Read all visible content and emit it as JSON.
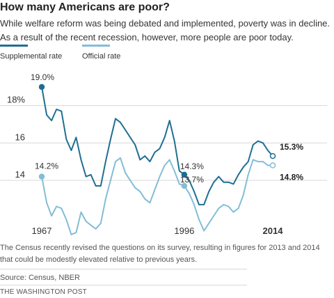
{
  "header": {
    "title": "How many Americans are poor?",
    "subtitle": "While welfare reform was being debated and implemented, poverty was in decline. As a result of the recent recession, however, more people are poor today."
  },
  "colors": {
    "supplemental": "#1f6e92",
    "official": "#83bdd6",
    "grid": "#d9d9d9",
    "axis_text": "#333333"
  },
  "chart_data": {
    "type": "line",
    "title": "",
    "xlabel": "",
    "ylabel": "",
    "x_tick_labels": [
      "1967",
      "1996",
      "2014"
    ],
    "x_tick_values": [
      1967,
      1996,
      2014
    ],
    "y_tick_labels": [
      "18%",
      "16",
      "14"
    ],
    "y_tick_values": [
      18,
      16,
      14
    ],
    "ylim": [
      11.8,
      20.0
    ],
    "xlim": [
      1967,
      2014
    ],
    "grid": true,
    "legend_placement": "top-left",
    "series": [
      {
        "name": "Supplemental rate",
        "color": "#1f6e92",
        "points": [
          [
            1967,
            19.0
          ],
          [
            1968,
            17.5
          ],
          [
            1969,
            17.2
          ],
          [
            1970,
            17.8
          ],
          [
            1971,
            17.7
          ],
          [
            1972,
            16.2
          ],
          [
            1973,
            15.6
          ],
          [
            1974,
            16.3
          ],
          [
            1975,
            15.1
          ],
          [
            1976,
            14.2
          ],
          [
            1977,
            14.3
          ],
          [
            1978,
            13.7
          ],
          [
            1979,
            13.7
          ],
          [
            1980,
            15.0
          ],
          [
            1981,
            16.2
          ],
          [
            1982,
            17.3
          ],
          [
            1983,
            17.1
          ],
          [
            1984,
            16.7
          ],
          [
            1985,
            16.3
          ],
          [
            1986,
            15.9
          ],
          [
            1987,
            15.1
          ],
          [
            1988,
            15.3
          ],
          [
            1989,
            15.0
          ],
          [
            1990,
            15.5
          ],
          [
            1991,
            15.7
          ],
          [
            1992,
            16.3
          ],
          [
            1993,
            17.2
          ],
          [
            1994,
            16.1
          ],
          [
            1995,
            14.5
          ],
          [
            1996,
            14.3
          ],
          [
            1997,
            14.0
          ],
          [
            1998,
            13.4
          ],
          [
            1999,
            12.7
          ],
          [
            2000,
            12.7
          ],
          [
            2001,
            13.4
          ],
          [
            2002,
            13.9
          ],
          [
            2003,
            14.2
          ],
          [
            2004,
            13.9
          ],
          [
            2005,
            13.9
          ],
          [
            2006,
            13.8
          ],
          [
            2007,
            14.3
          ],
          [
            2008,
            14.7
          ],
          [
            2009,
            15.0
          ],
          [
            2010,
            15.9
          ],
          [
            2011,
            16.1
          ],
          [
            2012,
            16.0
          ],
          [
            2013,
            15.6
          ],
          [
            2014,
            15.3
          ]
        ]
      },
      {
        "name": "Official rate",
        "color": "#83bdd6",
        "points": [
          [
            1967,
            14.2
          ],
          [
            1968,
            12.8
          ],
          [
            1969,
            12.1
          ],
          [
            1970,
            12.6
          ],
          [
            1971,
            12.5
          ],
          [
            1972,
            11.9
          ],
          [
            1973,
            11.1
          ],
          [
            1974,
            11.2
          ],
          [
            1975,
            12.3
          ],
          [
            1976,
            11.8
          ],
          [
            1977,
            11.6
          ],
          [
            1978,
            11.4
          ],
          [
            1979,
            11.7
          ],
          [
            1980,
            13.0
          ],
          [
            1981,
            14.0
          ],
          [
            1982,
            15.0
          ],
          [
            1983,
            15.2
          ],
          [
            1984,
            14.4
          ],
          [
            1985,
            14.0
          ],
          [
            1986,
            13.6
          ],
          [
            1987,
            13.4
          ],
          [
            1988,
            13.0
          ],
          [
            1989,
            12.8
          ],
          [
            1990,
            13.5
          ],
          [
            1991,
            14.2
          ],
          [
            1992,
            14.8
          ],
          [
            1993,
            15.1
          ],
          [
            1994,
            14.5
          ],
          [
            1995,
            13.8
          ],
          [
            1996,
            13.7
          ],
          [
            1997,
            13.3
          ],
          [
            1998,
            12.7
          ],
          [
            1999,
            11.9
          ],
          [
            2000,
            11.3
          ],
          [
            2001,
            11.7
          ],
          [
            2002,
            12.1
          ],
          [
            2003,
            12.5
          ],
          [
            2004,
            12.7
          ],
          [
            2005,
            12.6
          ],
          [
            2006,
            12.3
          ],
          [
            2007,
            12.5
          ],
          [
            2008,
            13.2
          ],
          [
            2009,
            14.3
          ],
          [
            2010,
            15.1
          ],
          [
            2011,
            15.0
          ],
          [
            2012,
            15.0
          ],
          [
            2013,
            14.8
          ],
          [
            2014,
            14.8
          ]
        ]
      }
    ],
    "annotations": [
      {
        "text": "19.0%",
        "series": 0,
        "year": 1967,
        "value": 19.0
      },
      {
        "text": "14.2%",
        "series": 1,
        "year": 1967,
        "value": 14.2
      },
      {
        "text": "14.3%",
        "series": 0,
        "year": 1996,
        "value": 14.3
      },
      {
        "text": "13.7%",
        "series": 1,
        "year": 1996,
        "value": 13.7
      },
      {
        "text": "15.3%",
        "series": 0,
        "year": 2014,
        "value": 15.3
      },
      {
        "text": "14.8%",
        "series": 1,
        "year": 2014,
        "value": 14.8
      }
    ]
  },
  "footer": {
    "note": "The Census recently revised the questions on its survey, resulting in figures for 2013 and 2014 that could be modestly elevated relative to previous years.",
    "source": "Source: Census, NBER",
    "credit": "THE WASHINGTON POST"
  }
}
